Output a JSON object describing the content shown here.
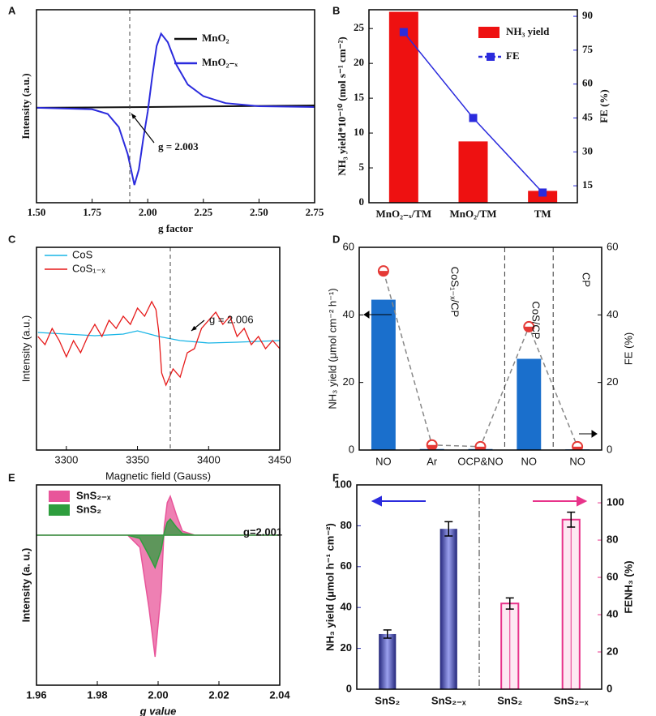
{
  "chart_data": [
    {
      "label": "A",
      "type": "line",
      "xlabel": "g factor",
      "ylabel": "Intensity (a.u.)",
      "xlim": [
        1.5,
        2.75
      ],
      "xticks": [
        {
          "value": 1.5,
          "label": "1.50"
        },
        1.75,
        {
          "value": 2.0,
          "label": "2.00"
        },
        2.25,
        {
          "value": 2.5,
          "label": "2.50"
        },
        2.75
      ],
      "ylim": [
        -1.23,
        1.27
      ],
      "legend": "upper right",
      "annotations": [
        "g = 2.003"
      ],
      "series": [
        {
          "name": "MnO₂",
          "color": "#111111",
          "x": [
            1.5,
            2.0,
            2.75
          ],
          "values": [
            0,
            0.01,
            0.03
          ]
        },
        {
          "name": "MnO₂₋ₓ",
          "color": "#2b2bdd",
          "x": [
            1.5,
            1.75,
            1.82,
            1.87,
            1.91,
            1.94,
            1.96,
            1.98,
            2.0,
            2.02,
            2.04,
            2.06,
            2.09,
            2.13,
            2.18,
            2.25,
            2.35,
            2.5,
            2.75
          ],
          "values": [
            0,
            -0.02,
            -0.08,
            -0.25,
            -0.6,
            -1.0,
            -0.8,
            -0.4,
            -0.05,
            0.4,
            0.8,
            0.96,
            0.85,
            0.55,
            0.3,
            0.15,
            0.06,
            0.02,
            0.01
          ]
        }
      ]
    },
    {
      "label": "B",
      "type": "bar",
      "ylabel": "NH₃ yield*10⁻¹⁰ (mol s⁻¹ cm⁻²)",
      "y2label": "FE (%)",
      "y2color": "#2b2bdd",
      "categories": [
        "MnO₂₋ₓ/TM",
        "MnO₂/TM",
        "TM"
      ],
      "ylim": [
        0,
        27.7
      ],
      "yticks": [
        0,
        5,
        10,
        15,
        20,
        25
      ],
      "y2lim": [
        7.5,
        92.9
      ],
      "y2ticks": [
        15,
        30,
        45,
        60,
        75,
        90
      ],
      "legend": "upper right",
      "series": [
        {
          "name": "NH₃ yield",
          "type": "bar",
          "color": "#ee1111",
          "values": [
            27.4,
            8.8,
            1.7
          ]
        },
        {
          "name": "FE",
          "type": "line",
          "axis": "y2",
          "color": "#2b2bdd",
          "marker": "square",
          "values": [
            83,
            45,
            12
          ]
        }
      ]
    },
    {
      "label": "C",
      "type": "line",
      "xlabel": "Magnetic field (Gauss)",
      "ylabel": "Intensity (a.u.)",
      "xlim": [
        3279,
        3450
      ],
      "xticks": [
        3300,
        3350,
        3400,
        3450
      ],
      "ylim": [
        -145,
        105
      ],
      "legend": "upper left",
      "annotations": [
        "g = 2.006"
      ],
      "series": [
        {
          "name": "CoS",
          "color": "#19b5e6",
          "x": [
            3280,
            3300,
            3320,
            3340,
            3350,
            3365,
            3380,
            3400,
            3420,
            3450
          ],
          "values": [
            0,
            -2,
            -4,
            -2,
            2,
            -5,
            -10,
            -13,
            -12,
            -10
          ]
        },
        {
          "name": "CoS₁₋ₓ",
          "color": "#e61919",
          "x": [
            3280,
            3285,
            3290,
            3295,
            3300,
            3305,
            3310,
            3315,
            3320,
            3325,
            3330,
            3335,
            3340,
            3345,
            3350,
            3355,
            3360,
            3363,
            3365,
            3367,
            3370,
            3375,
            3380,
            3385,
            3390,
            3395,
            3400,
            3405,
            3410,
            3415,
            3420,
            3425,
            3430,
            3435,
            3440,
            3445,
            3450
          ],
          "values": [
            -5,
            -15,
            5,
            -10,
            -30,
            -10,
            -25,
            -5,
            10,
            -5,
            15,
            5,
            20,
            10,
            30,
            20,
            38,
            28,
            0,
            -50,
            -65,
            -45,
            -55,
            -25,
            -20,
            5,
            15,
            25,
            10,
            20,
            -5,
            5,
            -15,
            -5,
            -20,
            -10,
            -20
          ]
        }
      ]
    },
    {
      "label": "D",
      "type": "bar",
      "ylabel": "NH₃ yield (μmol cm⁻² h⁻¹)",
      "y2label": "FE (%)",
      "categories": [
        "NO",
        "Ar",
        "OCP&NO",
        "NO",
        "NO"
      ],
      "ylim": [
        0,
        60
      ],
      "yticks": [
        0,
        20,
        40,
        60
      ],
      "y2lim": [
        0,
        60
      ],
      "y2ticks": [
        0,
        20,
        40,
        60
      ],
      "annotations": [
        "CoS₁₋ₓ/CP",
        "CoS/CP",
        "CP"
      ],
      "series": [
        {
          "type": "bar",
          "color": "#1a6fcc",
          "values": [
            44.5,
            0.3,
            0.3,
            27,
            0.2
          ]
        },
        {
          "type": "line",
          "axis": "y2",
          "color": "#e53935",
          "marker": "circle",
          "linestyle": "dashed",
          "values": [
            53,
            1.5,
            1,
            36.5,
            1
          ]
        }
      ]
    },
    {
      "label": "E",
      "type": "area",
      "xlabel": "g value",
      "ylabel": "Intensity (a. u.)",
      "xlim": [
        1.96,
        2.04
      ],
      "xticks": [
        1.96,
        1.98,
        {
          "value": 2.0,
          "label": "2.00"
        },
        2.02,
        2.04
      ],
      "ylim": [
        -185,
        62
      ],
      "legend": "upper left",
      "annotations": [
        "g=2.001"
      ],
      "series": [
        {
          "name": "SnS₂₋ₓ",
          "color": "#e8559a",
          "x": [
            1.96,
            1.99,
            1.994,
            1.997,
            1.999,
            2.001,
            2.002,
            2.003,
            2.004,
            2.006,
            2.008,
            2.012,
            2.04
          ],
          "values": [
            0,
            0,
            -15,
            -90,
            -150,
            -70,
            10,
            40,
            48,
            25,
            5,
            0,
            0
          ]
        },
        {
          "name": "SnS₂",
          "color": "#2e9e3e",
          "x": [
            1.96,
            1.99,
            1.994,
            1.997,
            1.999,
            2.001,
            2.002,
            2.003,
            2.004,
            2.006,
            2.008,
            2.012,
            2.04
          ],
          "values": [
            0,
            0,
            -4,
            -25,
            -40,
            -18,
            3,
            16,
            20,
            10,
            2,
            0,
            0
          ]
        }
      ]
    },
    {
      "label": "F",
      "type": "bar",
      "ylabel": "NH₃ yield (μmol h⁻¹ cm⁻²)",
      "y2label": "FENH₃ (%)",
      "ycolor": "#2b2bb0",
      "y2color": "#e8338a",
      "categories": [
        "SnS₂",
        "SnS₂₋ₓ",
        "SnS₂",
        "SnS₂₋ₓ"
      ],
      "ylim": [
        0,
        100
      ],
      "yticks": [
        0,
        20,
        40,
        60,
        80,
        100
      ],
      "y2lim": [
        0,
        109.6
      ],
      "y2ticks": [
        0,
        20,
        40,
        60,
        80,
        100
      ],
      "series": [
        {
          "type": "bar",
          "color": "#4a4fb8",
          "values": [
            27,
            78.5,
            null,
            null
          ],
          "errors": [
            2,
            3.5,
            null,
            null
          ]
        },
        {
          "type": "bar",
          "axis": "y2",
          "color": "#e8338a",
          "hollow": true,
          "values": [
            null,
            null,
            46,
            91
          ],
          "errors": [
            null,
            null,
            3,
            4
          ]
        }
      ]
    }
  ]
}
